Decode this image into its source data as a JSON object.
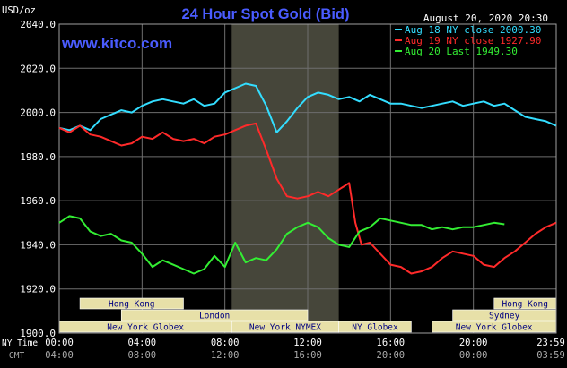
{
  "colors": {
    "background": "#000000",
    "plot_frame": "#a0a0a0",
    "grid": "#6e6e6e",
    "title": "#4a5cff",
    "brand": "#4a5cff",
    "session_fill": "#e7e0a8",
    "session_text": "#000080",
    "nymex_shade": "#46463a"
  },
  "chart_data": {
    "type": "line",
    "title": "24 Hour Spot Gold (Bid)",
    "brand": "www.kitco.com",
    "date_stamp": "August 20, 2020 20:30",
    "ylabel": "USD/oz",
    "ylim": [
      1900,
      2040
    ],
    "y_ticks": [
      "1900.0",
      "1920.0",
      "1940.0",
      "1960.0",
      "1980.0",
      "2000.0",
      "2020.0",
      "2040.0"
    ],
    "y_tick_values": [
      1900,
      1920,
      1940,
      1960,
      1980,
      2000,
      2020,
      2040
    ],
    "xlim": [
      0,
      24
    ],
    "x_tick_hours": [
      0,
      4,
      8,
      12,
      16,
      20,
      24
    ],
    "ny_time_label": "NY Time",
    "gmt_label": "GMT",
    "ny_time_ticks": [
      "00:00",
      "04:00",
      "08:00",
      "12:00",
      "16:00",
      "20:00",
      "23:59"
    ],
    "gmt_ticks": [
      "04:00",
      "08:00",
      "12:00",
      "16:00",
      "20:00",
      "00:00",
      "03:59"
    ],
    "grid": true,
    "legend_position": "top-right",
    "series": [
      {
        "name": "Aug 18 NY close 2000.30",
        "color": "#33ddff",
        "x": [
          0,
          0.5,
          1,
          1.5,
          2,
          2.5,
          3,
          3.5,
          4,
          4.5,
          5,
          5.5,
          6,
          6.5,
          7,
          7.5,
          8,
          8.5,
          9,
          9.5,
          10,
          10.5,
          11,
          11.5,
          12,
          12.5,
          13,
          13.5,
          14,
          14.5,
          15,
          15.5,
          16,
          16.5,
          17,
          17.5,
          18,
          18.5,
          19,
          19.5,
          20,
          20.5,
          21,
          21.5,
          22,
          22.5,
          23,
          23.5,
          23.99
        ],
        "values": [
          1993,
          1992,
          1994,
          1992,
          1997,
          1999,
          2001,
          2000,
          2003,
          2005,
          2006,
          2005,
          2004,
          2006,
          2003,
          2004,
          2009,
          2011,
          2013,
          2012,
          2003,
          1991,
          1996,
          2002,
          2007,
          2009,
          2008,
          2006,
          2007,
          2005,
          2008,
          2006,
          2004,
          2004,
          2003,
          2002,
          2003,
          2004,
          2005,
          2003,
          2004,
          2005,
          2003,
          2004,
          2001,
          1998,
          1997,
          1996,
          1994
        ]
      },
      {
        "name": "Aug 19 NY close 1927.90",
        "color": "#ff2a2a",
        "x": [
          0,
          0.5,
          1,
          1.5,
          2,
          2.5,
          3,
          3.5,
          4,
          4.5,
          5,
          5.5,
          6,
          6.5,
          7,
          7.5,
          8,
          8.5,
          9,
          9.5,
          10,
          10.5,
          11,
          11.5,
          12,
          12.5,
          13,
          13.5,
          14,
          14.3,
          14.6,
          15,
          15.5,
          16,
          16.5,
          17,
          17.5,
          18,
          18.5,
          19,
          19.5,
          20,
          20.5,
          21,
          21.5,
          22,
          22.5,
          23,
          23.5,
          23.99
        ],
        "values": [
          1993,
          1991,
          1994,
          1990,
          1989,
          1987,
          1985,
          1986,
          1989,
          1988,
          1991,
          1988,
          1987,
          1988,
          1986,
          1989,
          1990,
          1992,
          1994,
          1995,
          1983,
          1970,
          1962,
          1961,
          1962,
          1964,
          1962,
          1965,
          1968,
          1950,
          1940,
          1941,
          1936,
          1931,
          1930,
          1927,
          1928,
          1930,
          1934,
          1937,
          1936,
          1935,
          1931,
          1930,
          1934,
          1937,
          1941,
          1945,
          1948,
          1950
        ]
      },
      {
        "name": "Aug 20 Last 1949.30",
        "color": "#33ee33",
        "x": [
          0,
          0.5,
          1,
          1.5,
          2,
          2.5,
          3,
          3.5,
          4,
          4.5,
          5,
          5.5,
          6,
          6.5,
          7,
          7.5,
          8,
          8.5,
          9,
          9.5,
          10,
          10.5,
          11,
          11.5,
          12,
          12.5,
          13,
          13.5,
          14,
          14.5,
          15,
          15.5,
          16,
          16.5,
          17,
          17.5,
          18,
          18.5,
          19,
          19.5,
          20,
          20.5,
          21,
          21.5
        ],
        "values": [
          1950,
          1953,
          1952,
          1946,
          1944,
          1945,
          1942,
          1941,
          1936,
          1930,
          1933,
          1931,
          1929,
          1927,
          1929,
          1935,
          1930,
          1941,
          1932,
          1934,
          1933,
          1938,
          1945,
          1948,
          1950,
          1948,
          1943,
          1940,
          1939,
          1946,
          1948,
          1952,
          1951,
          1950,
          1949,
          1949,
          1947,
          1948,
          1947,
          1948,
          1948,
          1949,
          1950,
          1949.3
        ]
      }
    ],
    "nymex_session": {
      "label": "New York NYMEX",
      "start": 8.33,
      "end": 13.5
    },
    "market_sessions": [
      {
        "label": "Hong Kong",
        "start": 1.0,
        "end": 6.0
      },
      {
        "label": "Hong Kong",
        "start": 21.0,
        "end": 23.99
      },
      {
        "label": "London",
        "start": 3.0,
        "end": 12.0
      },
      {
        "label": "Sydney",
        "start": 19.0,
        "end": 23.99
      },
      {
        "label": "New York Globex",
        "start": 0.0,
        "end": 8.33
      },
      {
        "label": "New York NYMEX",
        "start": 8.33,
        "end": 13.5
      },
      {
        "label": "NY Globex",
        "start": 13.5,
        "end": 17.0
      },
      {
        "label": "New York Globex",
        "start": 18.0,
        "end": 23.99
      }
    ]
  }
}
